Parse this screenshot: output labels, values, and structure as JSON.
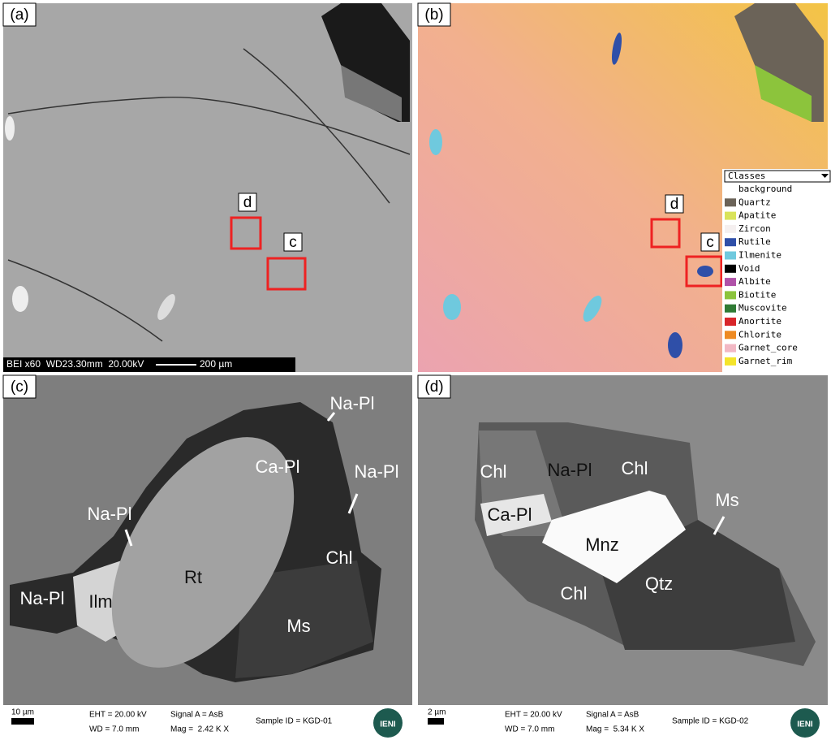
{
  "panels": [
    {
      "label": "(a)",
      "boxes": [
        "d",
        "c"
      ],
      "scale_bar": {
        "info": "BEI x60  WD23.30mm  20.00kV",
        "length": "200 µm"
      }
    },
    {
      "label": "(b)",
      "boxes": [
        "d",
        "c"
      ],
      "legend": {
        "title": "Classes",
        "classes": [
          {
            "name": "background",
            "color": "#ffffff"
          },
          {
            "name": "Quartz",
            "color": "#6b6358"
          },
          {
            "name": "Apatite",
            "color": "#d9e35a"
          },
          {
            "name": "Zircon",
            "color": "#f5f0f0"
          },
          {
            "name": "Rutile",
            "color": "#2f4fa8"
          },
          {
            "name": "Ilmenite",
            "color": "#6fc9de"
          },
          {
            "name": "Void",
            "color": "#000000"
          },
          {
            "name": "Albite",
            "color": "#b052a8"
          },
          {
            "name": "Biotite",
            "color": "#8cc43c"
          },
          {
            "name": "Muscovite",
            "color": "#2f7a34"
          },
          {
            "name": "Anortite",
            "color": "#d8262a"
          },
          {
            "name": "Chlorite",
            "color": "#ee8a22"
          },
          {
            "name": "Garnet_core",
            "color": "#f2b8c4"
          },
          {
            "name": "Garnet_rim",
            "color": "#f4e42a"
          }
        ]
      }
    },
    {
      "label": "(c)",
      "annotations": [
        "Na-Pl",
        "Na-Pl",
        "Ca-Pl",
        "Na-Pl",
        "Na-Pl",
        "Ilm",
        "Rt",
        "Chl",
        "Ms"
      ],
      "footer": {
        "scale": "10 µm",
        "eht": "EHT = 20.00 kV",
        "wd": "WD = 7.0 mm",
        "signal": "Signal A = AsB",
        "mag": "Mag =  2.42 K X",
        "sample": "Sample ID = KGD-01",
        "logo": "IENI"
      }
    },
    {
      "label": "(d)",
      "annotations": [
        "Chl",
        "Na-Pl",
        "Chl",
        "Ms",
        "Ca-Pl",
        "Mnz",
        "Chl",
        "Qtz"
      ],
      "footer": {
        "scale": "2 µm",
        "eht": "EHT = 20.00 kV",
        "wd": "WD = 7.0 mm",
        "signal": "Signal A = AsB",
        "mag": "Mag =  5.34 K X",
        "sample": "Sample ID = KGD-02",
        "logo": "IENI"
      }
    }
  ]
}
